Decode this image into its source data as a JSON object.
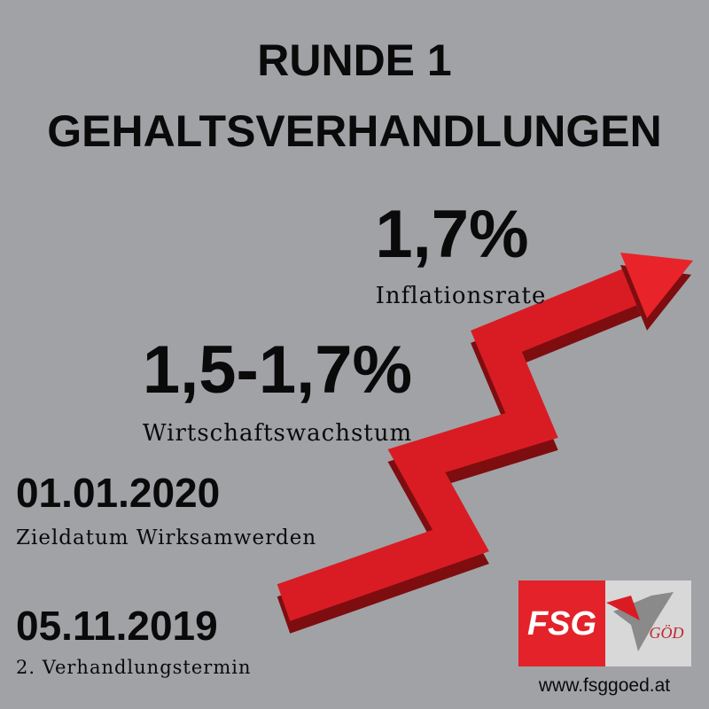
{
  "header": {
    "title_line_1": "RUNDE 1",
    "title_line_2": "GEHALTSVERHANDLUNGEN"
  },
  "stats": [
    {
      "value": "1,7%",
      "label": "Inflationsrate"
    },
    {
      "value": "1,5-1,7%",
      "label": "Wirtschaftswachstum"
    },
    {
      "value": "01.01.2020",
      "label": "Zieldatum Wirksamwerden"
    },
    {
      "value": "05.11.2019",
      "label": "2. Verhandlungstermin"
    }
  ],
  "logo": {
    "left": "FSG",
    "right": "GÖD"
  },
  "footer": {
    "url": "www.fsggoed.at"
  }
}
